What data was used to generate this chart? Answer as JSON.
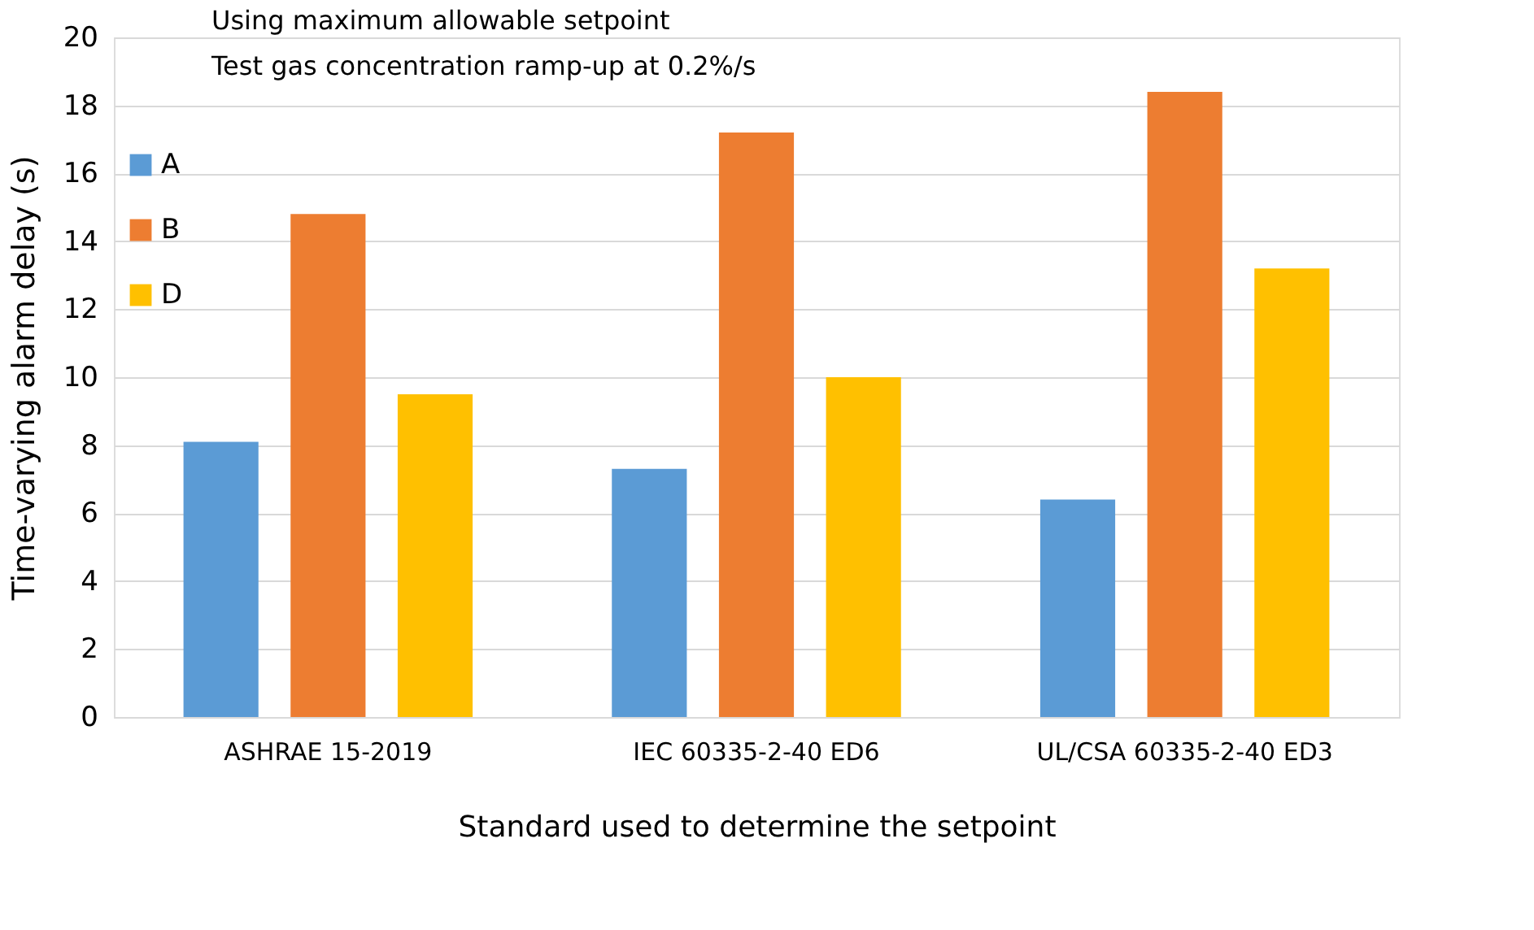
{
  "chart_data": {
    "type": "bar",
    "xlabel": "Standard used to determine the setpoint",
    "ylabel": "Time-varying alarm delay (s)",
    "annotations": [
      "Using maximum allowable setpoint",
      "Test gas concentration ramp-up at 0.2%/s"
    ],
    "categories": [
      "ASHRAE 15-2019",
      "IEC 60335-2-40 ED6",
      "UL/CSA 60335-2-40 ED3"
    ],
    "series": [
      {
        "name": "A",
        "color": "#5b9bd5",
        "values": [
          8.1,
          7.3,
          6.4
        ]
      },
      {
        "name": "B",
        "color": "#ed7d31",
        "values": [
          14.8,
          17.2,
          18.4
        ]
      },
      {
        "name": "D",
        "color": "#ffc000",
        "values": [
          9.5,
          10.0,
          13.2
        ]
      }
    ],
    "ylim": [
      0,
      20
    ],
    "yticks": [
      0,
      2,
      4,
      6,
      8,
      10,
      12,
      14,
      16,
      18,
      20
    ],
    "grid": "y",
    "legend": "top left"
  }
}
